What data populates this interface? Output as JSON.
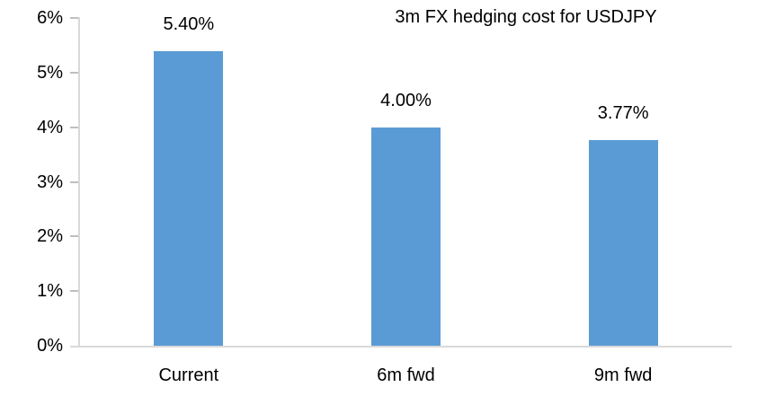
{
  "chart_data": {
    "type": "bar",
    "title": "3m FX hedging cost for USDJPY",
    "categories": [
      "Current",
      "6m fwd",
      "9m fwd"
    ],
    "values": [
      5.4,
      4.0,
      3.77
    ],
    "value_labels": [
      "5.40%",
      "4.00%",
      "3.77%"
    ],
    "xlabel": "",
    "ylabel": "",
    "ylim": [
      0,
      6
    ],
    "y_ticks": [
      6,
      5,
      4,
      3,
      2,
      1,
      0
    ],
    "y_tick_labels": [
      "6%",
      "5%",
      "4%",
      "3%",
      "2%",
      "1%",
      "0%"
    ],
    "grid": false,
    "legend_position": "none",
    "bar_color": "#5B9BD5",
    "axis_color": "#D9D9D9",
    "tick_color": "#BFBFBF",
    "text_color": "#000000",
    "background_color": "#FFFFFF"
  }
}
